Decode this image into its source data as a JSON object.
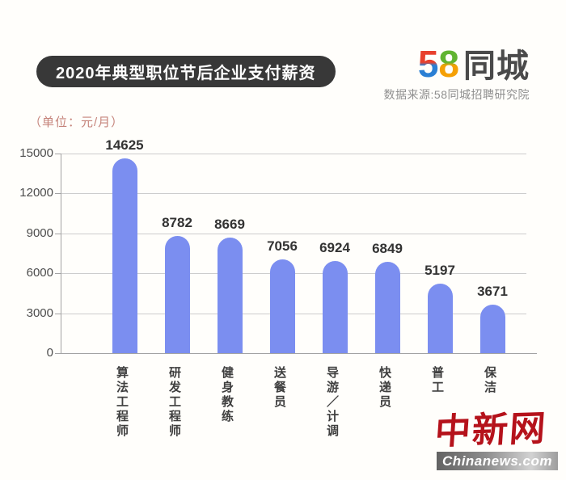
{
  "header": {
    "title": "2020年典型职位节后企业支付薪资",
    "logo": {
      "five": "5",
      "eight": "8",
      "name": "同城"
    },
    "source": "数据来源:58同城招聘研究院"
  },
  "chart_data": {
    "type": "bar",
    "title": "2020年典型职位节后企业支付薪资",
    "unit_label": "（单位：元/月）",
    "categories": [
      "算法工程师",
      "研发工程师",
      "健身教练",
      "送餐员",
      "导游／计调",
      "快递员",
      "普工",
      "保洁"
    ],
    "values": [
      14625,
      8782,
      8669,
      7056,
      6924,
      6849,
      5197,
      3671
    ],
    "xlabel": "",
    "ylabel": "",
    "ylim": [
      0,
      15000
    ],
    "yticks": [
      0,
      3000,
      6000,
      9000,
      12000,
      15000
    ],
    "grid": true,
    "legend": "none",
    "bar_color": "#7b8ef0"
  },
  "footer": {
    "site_name": "中新网",
    "site_url": "Chinanews.com"
  },
  "colors": {
    "bar": "#7b8ef0",
    "pill_bg": "#383838",
    "pill_text": "#ffffff",
    "unit_text": "#c5837a",
    "grid": "#cdcdcd",
    "axis": "#a3a3a3",
    "tick_label": "#4c4c4c",
    "value_label": "#333333",
    "category_label": "#3f3f3f",
    "source_text": "#8f8f8f",
    "logo_5_top": "#e8402d",
    "logo_5_bottom": "#2a7fd4",
    "logo_8_top": "#61b431",
    "logo_8_bottom": "#f5a005",
    "logo_name_color": "#4a4a4a",
    "chinanews_red": "#b5121b",
    "banner_text": "#ffffff"
  }
}
